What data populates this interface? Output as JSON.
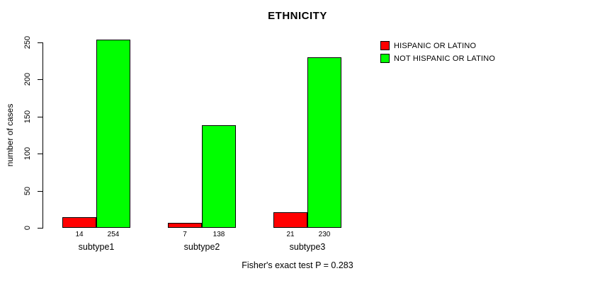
{
  "title": "ETHNICITY",
  "footer": "Fisher's exact test P = 0.283",
  "chart_data": {
    "type": "bar",
    "title": "ETHNICITY",
    "xlabel": "",
    "ylabel": "number of cases",
    "categories": [
      "subtype1",
      "subtype2",
      "subtype3"
    ],
    "series": [
      {
        "name": "HISPANIC OR LATINO",
        "color": "#ff0000",
        "values": [
          14,
          7,
          21
        ]
      },
      {
        "name": "NOT HISPANIC OR LATINO",
        "color": "#00ff00",
        "values": [
          254,
          138,
          230
        ]
      }
    ],
    "ylim": [
      0,
      250
    ],
    "yticks": [
      0,
      50,
      100,
      150,
      200,
      250
    ],
    "grid": false,
    "legend_position": "top-right",
    "annotations": [
      "Fisher's exact test P = 0.283"
    ]
  }
}
